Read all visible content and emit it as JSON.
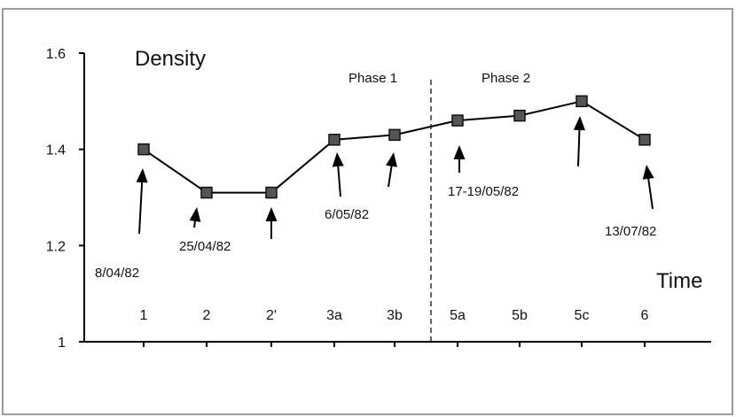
{
  "chart_data": {
    "type": "line",
    "ylabel": "Density",
    "xlabel": "Time",
    "ylim": [
      1,
      1.6
    ],
    "yticks": [
      1,
      1.2,
      1.4,
      1.6
    ],
    "ytick_labels": [
      "1",
      "1.2",
      "1.4",
      "1.6"
    ],
    "categories": [
      "1",
      "2",
      "2'",
      "3a",
      "3b",
      "5a",
      "5b",
      "5c",
      "6"
    ],
    "series": [
      {
        "values": [
          1.4,
          1.31,
          1.31,
          1.42,
          1.43,
          1.46,
          1.47,
          1.5,
          1.42
        ]
      }
    ],
    "phases": [
      {
        "label": "Phase 1"
      },
      {
        "label": "Phase 2"
      }
    ],
    "annotations": [
      {
        "label": "8/04/82",
        "point": 0
      },
      {
        "label": "25/04/82",
        "point": 1
      },
      {
        "label": "6/05/82",
        "point": 3
      },
      {
        "label": "17-19/05/82",
        "point": 5
      },
      {
        "label": "13/07/82",
        "point": 8
      }
    ],
    "grid": false,
    "legend": "none",
    "colors": {
      "line": "#000000",
      "marker": "#555555",
      "marker_edge": "#111111"
    }
  }
}
